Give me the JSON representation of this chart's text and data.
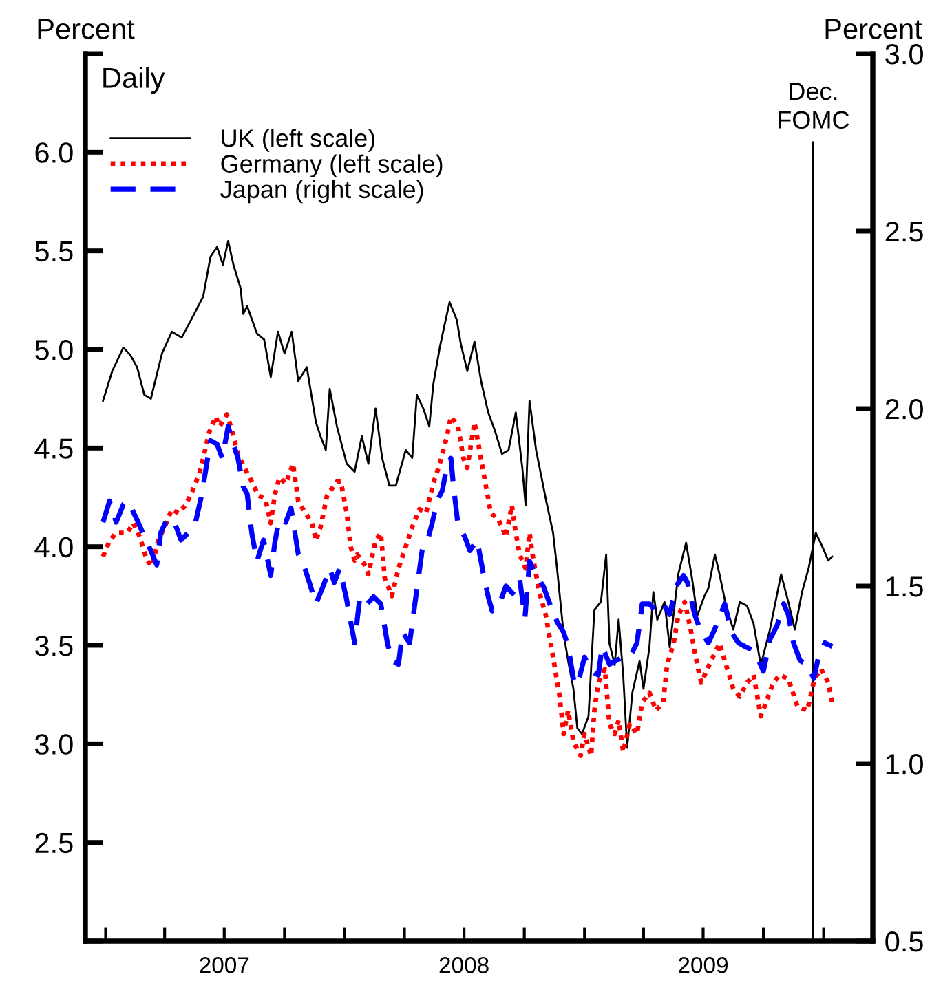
{
  "chart_data": {
    "type": "line",
    "ylabel": "Percent",
    "y2label": "Percent",
    "annotations": [
      "Daily"
    ],
    "xlim": [
      "2006-12-01",
      "2010-03-17"
    ],
    "xticks": [
      {
        "value": "2007-01-01",
        "label": null
      },
      {
        "value": "2007-04-01",
        "label": null
      },
      {
        "value": "2007-07-01",
        "label": "2007"
      },
      {
        "value": "2007-10-01",
        "label": null
      },
      {
        "value": "2008-01-01",
        "label": null
      },
      {
        "value": "2008-04-01",
        "label": null
      },
      {
        "value": "2008-07-01",
        "label": "2008"
      },
      {
        "value": "2008-10-01",
        "label": null
      },
      {
        "value": "2009-01-01",
        "label": null
      },
      {
        "value": "2009-04-01",
        "label": null
      },
      {
        "value": "2009-07-01",
        "label": "2009"
      },
      {
        "value": "2009-10-01",
        "label": null
      },
      {
        "value": "2010-01-01",
        "label": null
      }
    ],
    "ylim": [
      2.0,
      6.5
    ],
    "yticks": [
      {
        "value": 2.0,
        "label": null
      },
      {
        "value": 2.5,
        "label": "2.5"
      },
      {
        "value": 3.0,
        "label": "3.0"
      },
      {
        "value": 3.5,
        "label": "3.5"
      },
      {
        "value": 4.0,
        "label": "4.0"
      },
      {
        "value": 4.5,
        "label": "4.5"
      },
      {
        "value": 5.0,
        "label": "5.0"
      },
      {
        "value": 5.5,
        "label": "5.5"
      },
      {
        "value": 6.0,
        "label": "6.0"
      },
      {
        "value": 6.5,
        "label": null
      }
    ],
    "y2lim": [
      0.5,
      3.0
    ],
    "y2ticks": [
      {
        "value": 0.5,
        "label": "0.5"
      },
      {
        "value": 1.0,
        "label": "1.0"
      },
      {
        "value": 1.5,
        "label": "1.5"
      },
      {
        "value": 2.0,
        "label": "2.0"
      },
      {
        "value": 2.5,
        "label": "2.5"
      },
      {
        "value": 3.0,
        "label": "3.0"
      }
    ],
    "grid": false,
    "legend": "top left",
    "marker": "none",
    "ref_lines": [
      {
        "axis": "x",
        "value": "2009-12-16",
        "label": "Dec.\nFOMC",
        "color": "#000000",
        "line_style": "solid"
      }
    ],
    "series": [
      {
        "name": "UK (left scale)",
        "color": "#000000",
        "line_style": "solid",
        "x": [
          "2006-12-28",
          "2007-01-11",
          "2007-01-28",
          "2007-02-08",
          "2007-02-18",
          "2007-03-01",
          "2007-03-11",
          "2007-03-28",
          "2007-04-12",
          "2007-04-27",
          "2007-05-13",
          "2007-05-30",
          "2007-06-10",
          "2007-06-20",
          "2007-06-29",
          "2007-07-07",
          "2007-07-15",
          "2007-07-26",
          "2007-07-30",
          "2007-08-05",
          "2007-08-20",
          "2007-08-31",
          "2007-09-10",
          "2007-09-21",
          "2007-10-01",
          "2007-10-12",
          "2007-10-22",
          "2007-11-04",
          "2007-11-18",
          "2007-11-25",
          "2007-12-03",
          "2007-12-09",
          "2007-12-20",
          "2008-01-04",
          "2008-01-16",
          "2008-01-27",
          "2008-02-06",
          "2008-02-17",
          "2008-02-27",
          "2008-03-09",
          "2008-03-19",
          "2008-04-03",
          "2008-04-13",
          "2008-04-20",
          "2008-04-30",
          "2008-05-09",
          "2008-05-15",
          "2008-05-25",
          "2008-06-01",
          "2008-06-09",
          "2008-06-20",
          "2008-06-26",
          "2008-07-06",
          "2008-07-17",
          "2008-07-27",
          "2008-08-07",
          "2008-08-17",
          "2008-08-28",
          "2008-09-07",
          "2008-09-18",
          "2008-09-28",
          "2008-10-03",
          "2008-10-09",
          "2008-10-19",
          "2008-11-03",
          "2008-11-14",
          "2008-11-20",
          "2008-11-30",
          "2008-12-07",
          "2008-12-15",
          "2008-12-21",
          "2008-12-28",
          "2009-01-07",
          "2009-01-16",
          "2009-01-26",
          "2009-02-03",
          "2009-02-08",
          "2009-02-16",
          "2009-02-22",
          "2009-03-01",
          "2009-03-07",
          "2009-03-15",
          "2009-03-26",
          "2009-04-01",
          "2009-04-10",
          "2009-04-16",
          "2009-04-22",
          "2009-05-03",
          "2009-05-11",
          "2009-05-24",
          "2009-06-05",
          "2009-06-14",
          "2009-06-22",
          "2009-07-03",
          "2009-07-09",
          "2009-07-19",
          "2009-07-26",
          "2009-08-05",
          "2009-08-16",
          "2009-08-26",
          "2009-09-06",
          "2009-09-16",
          "2009-09-27",
          "2009-10-11",
          "2009-10-28",
          "2009-11-08",
          "2009-11-18",
          "2009-11-29",
          "2009-12-09",
          "2009-12-20",
          "2009-12-30",
          "2010-01-08",
          "2010-01-14"
        ],
        "values": [
          4.74,
          4.89,
          5.01,
          4.97,
          4.91,
          4.77,
          4.75,
          4.98,
          5.09,
          5.06,
          5.16,
          5.27,
          5.47,
          5.52,
          5.43,
          5.55,
          5.43,
          5.31,
          5.18,
          5.22,
          5.08,
          5.05,
          4.86,
          5.09,
          4.98,
          5.09,
          4.84,
          4.91,
          4.63,
          4.56,
          4.49,
          4.8,
          4.61,
          4.42,
          4.38,
          4.56,
          4.42,
          4.7,
          4.45,
          4.31,
          4.31,
          4.49,
          4.45,
          4.77,
          4.7,
          4.61,
          4.82,
          5.01,
          5.12,
          5.24,
          5.15,
          5.03,
          4.89,
          5.04,
          4.84,
          4.68,
          4.59,
          4.47,
          4.49,
          4.68,
          4.4,
          4.21,
          4.74,
          4.49,
          4.24,
          4.07,
          3.89,
          3.56,
          3.42,
          3.28,
          3.08,
          3.05,
          3.14,
          3.68,
          3.72,
          3.96,
          3.51,
          3.4,
          3.63,
          3.35,
          2.98,
          3.26,
          3.42,
          3.28,
          3.49,
          3.77,
          3.63,
          3.72,
          3.49,
          3.86,
          4.02,
          3.84,
          3.65,
          3.75,
          3.79,
          3.96,
          3.86,
          3.7,
          3.58,
          3.72,
          3.7,
          3.61,
          3.4,
          3.58,
          3.86,
          3.72,
          3.58,
          3.77,
          3.89,
          4.07,
          4.0,
          3.93,
          3.95
        ]
      },
      {
        "name": "Germany (left scale)",
        "color": "#ff0000",
        "line_style": "dotted",
        "x": [
          "2006-12-28",
          "2007-01-07",
          "2007-01-17",
          "2007-01-28",
          "2007-02-03",
          "2007-02-12",
          "2007-02-22",
          "2007-03-05",
          "2007-03-13",
          "2007-03-22",
          "2007-04-01",
          "2007-04-12",
          "2007-04-22",
          "2007-05-03",
          "2007-05-13",
          "2007-05-24",
          "2007-05-30",
          "2007-06-08",
          "2007-06-18",
          "2007-06-24",
          "2007-07-05",
          "2007-07-11",
          "2007-07-22",
          "2007-08-01",
          "2007-08-12",
          "2007-08-22",
          "2007-09-02",
          "2007-09-10",
          "2007-09-16",
          "2007-09-23",
          "2007-10-03",
          "2007-10-14",
          "2007-10-22",
          "2007-11-02",
          "2007-11-12",
          "2007-11-18",
          "2007-11-25",
          "2007-12-05",
          "2007-12-20",
          "2007-12-26",
          "2008-01-04",
          "2008-01-10",
          "2008-01-16",
          "2008-01-20",
          "2008-01-31",
          "2008-02-06",
          "2008-02-17",
          "2008-02-25",
          "2008-03-02",
          "2008-03-13",
          "2008-03-23",
          "2008-04-03",
          "2008-04-13",
          "2008-04-24",
          "2008-05-04",
          "2008-05-15",
          "2008-05-25",
          "2008-06-05",
          "2008-06-11",
          "2008-06-22",
          "2008-06-30",
          "2008-07-06",
          "2008-07-17",
          "2008-07-23",
          "2008-08-01",
          "2008-08-11",
          "2008-08-22",
          "2008-08-28",
          "2008-09-03",
          "2008-09-12",
          "2008-09-18",
          "2008-09-24",
          "2008-10-03",
          "2008-10-09",
          "2008-10-15",
          "2008-10-24",
          "2008-11-03",
          "2008-11-16",
          "2008-11-24",
          "2008-11-30",
          "2008-12-07",
          "2008-12-15",
          "2008-12-26",
          "2009-01-01",
          "2009-01-11",
          "2009-01-16",
          "2009-01-22",
          "2009-02-01",
          "2009-02-08",
          "2009-02-16",
          "2009-02-22",
          "2009-03-01",
          "2009-03-11",
          "2009-03-22",
          "2009-03-30",
          "2009-04-10",
          "2009-04-20",
          "2009-05-01",
          "2009-05-07",
          "2009-05-17",
          "2009-05-24",
          "2009-06-03",
          "2009-06-12",
          "2009-06-22",
          "2009-06-28",
          "2009-07-13",
          "2009-07-26",
          "2009-08-05",
          "2009-08-16",
          "2009-08-26",
          "2009-09-06",
          "2009-09-16",
          "2009-09-27",
          "2009-10-05",
          "2009-10-16",
          "2009-10-26",
          "2009-11-08",
          "2009-11-22",
          "2009-12-07",
          "2009-12-18",
          "2009-12-28",
          "2010-01-08",
          "2010-01-14"
        ],
        "values": [
          3.95,
          4.03,
          4.07,
          4.07,
          4.07,
          4.12,
          4.05,
          3.93,
          3.9,
          4.03,
          4.1,
          4.19,
          4.17,
          4.21,
          4.28,
          4.37,
          4.45,
          4.58,
          4.66,
          4.61,
          4.67,
          4.61,
          4.47,
          4.4,
          4.33,
          4.26,
          4.24,
          4.12,
          4.26,
          4.35,
          4.32,
          4.42,
          4.23,
          4.17,
          4.12,
          4.03,
          4.1,
          4.26,
          4.33,
          4.33,
          4.17,
          4.0,
          3.93,
          3.96,
          3.91,
          3.86,
          4.03,
          4.07,
          3.84,
          3.75,
          3.89,
          4.0,
          4.1,
          4.19,
          4.17,
          4.32,
          4.42,
          4.56,
          4.66,
          4.61,
          4.45,
          4.4,
          4.63,
          4.52,
          4.35,
          4.17,
          4.14,
          4.1,
          4.05,
          4.21,
          4.07,
          3.96,
          3.89,
          4.07,
          3.93,
          3.77,
          3.65,
          3.4,
          3.24,
          3.05,
          3.17,
          3.01,
          2.94,
          3.05,
          2.94,
          3.17,
          3.31,
          3.38,
          3.1,
          3.05,
          3.12,
          2.96,
          3.1,
          3.05,
          3.21,
          3.26,
          3.17,
          3.21,
          3.4,
          3.51,
          3.65,
          3.72,
          3.58,
          3.4,
          3.31,
          3.42,
          3.51,
          3.4,
          3.28,
          3.24,
          3.31,
          3.35,
          3.14,
          3.21,
          3.31,
          3.35,
          3.33,
          3.19,
          3.17,
          3.33,
          3.38,
          3.31,
          3.21
        ]
      },
      {
        "name": "Japan (right scale)",
        "color": "#0000ff",
        "line_style": "dashed",
        "axis": "y2",
        "x": [
          "2006-12-28",
          "2007-01-07",
          "2007-01-17",
          "2007-01-28",
          "2007-02-03",
          "2007-02-12",
          "2007-02-22",
          "2007-03-01",
          "2007-03-11",
          "2007-03-20",
          "2007-03-26",
          "2007-04-05",
          "2007-04-16",
          "2007-04-26",
          "2007-05-07",
          "2007-05-17",
          "2007-05-28",
          "2007-06-03",
          "2007-06-10",
          "2007-06-20",
          "2007-06-28",
          "2007-07-07",
          "2007-07-15",
          "2007-07-22",
          "2007-07-30",
          "2007-08-05",
          "2007-08-12",
          "2007-08-20",
          "2007-08-30",
          "2007-09-10",
          "2007-09-16",
          "2007-09-23",
          "2007-10-03",
          "2007-10-11",
          "2007-10-22",
          "2007-11-01",
          "2007-11-08",
          "2007-11-18",
          "2007-11-29",
          "2007-12-09",
          "2007-12-16",
          "2007-12-24",
          "2008-01-03",
          "2008-01-10",
          "2008-01-16",
          "2008-01-24",
          "2008-02-04",
          "2008-02-14",
          "2008-02-25",
          "2008-03-06",
          "2008-03-13",
          "2008-03-23",
          "2008-03-29",
          "2008-04-09",
          "2008-04-17",
          "2008-04-28",
          "2008-05-08",
          "2008-05-15",
          "2008-05-21",
          "2008-05-29",
          "2008-06-05",
          "2008-06-11",
          "2008-06-15",
          "2008-06-22",
          "2008-07-02",
          "2008-07-10",
          "2008-07-21",
          "2008-07-31",
          "2008-08-07",
          "2008-08-13",
          "2008-08-24",
          "2008-09-03",
          "2008-09-13",
          "2008-09-24",
          "2008-10-02",
          "2008-10-09",
          "2008-10-19",
          "2008-10-30",
          "2008-11-09",
          "2008-11-20",
          "2008-11-30",
          "2008-12-07",
          "2008-12-15",
          "2008-12-21",
          "2009-01-01",
          "2009-01-11",
          "2009-01-22",
          "2009-01-28",
          "2009-02-08",
          "2009-02-18",
          "2009-03-01",
          "2009-03-11",
          "2009-03-22",
          "2009-03-30",
          "2009-04-10",
          "2009-04-20",
          "2009-05-01",
          "2009-05-11",
          "2009-05-21",
          "2009-06-01",
          "2009-06-07",
          "2009-06-18",
          "2009-06-28",
          "2009-07-09",
          "2009-07-19",
          "2009-08-03",
          "2009-08-13",
          "2009-08-24",
          "2009-09-03",
          "2009-09-14",
          "2009-09-24",
          "2009-10-01",
          "2009-10-11",
          "2009-10-22",
          "2009-11-01",
          "2009-11-08",
          "2009-11-16",
          "2009-11-26",
          "2009-12-07",
          "2009-12-17",
          "2009-12-24",
          "2010-01-03",
          "2010-01-14"
        ],
        "values": [
          1.68,
          1.74,
          1.68,
          1.73,
          1.74,
          1.71,
          1.67,
          1.64,
          1.6,
          1.56,
          1.65,
          1.69,
          1.68,
          1.63,
          1.65,
          1.67,
          1.76,
          1.83,
          1.91,
          1.9,
          1.86,
          1.95,
          1.9,
          1.86,
          1.78,
          1.76,
          1.65,
          1.57,
          1.63,
          1.53,
          1.62,
          1.69,
          1.68,
          1.72,
          1.59,
          1.55,
          1.51,
          1.45,
          1.5,
          1.55,
          1.51,
          1.55,
          1.47,
          1.4,
          1.34,
          1.47,
          1.45,
          1.47,
          1.45,
          1.34,
          1.29,
          1.28,
          1.37,
          1.34,
          1.45,
          1.6,
          1.64,
          1.69,
          1.74,
          1.77,
          1.84,
          1.86,
          1.78,
          1.67,
          1.64,
          1.6,
          1.63,
          1.53,
          1.47,
          1.43,
          1.45,
          1.5,
          1.48,
          1.52,
          1.41,
          1.57,
          1.53,
          1.5,
          1.45,
          1.4,
          1.37,
          1.33,
          1.24,
          1.22,
          1.3,
          1.26,
          1.25,
          1.33,
          1.28,
          1.29,
          1.3,
          1.3,
          1.34,
          1.45,
          1.45,
          1.43,
          1.45,
          1.42,
          1.5,
          1.53,
          1.51,
          1.42,
          1.37,
          1.34,
          1.38,
          1.45,
          1.37,
          1.34,
          1.33,
          1.32,
          1.29,
          1.26,
          1.35,
          1.39,
          1.45,
          1.42,
          1.34,
          1.29,
          1.28,
          1.24,
          1.3,
          1.34,
          1.33
        ]
      }
    ]
  }
}
